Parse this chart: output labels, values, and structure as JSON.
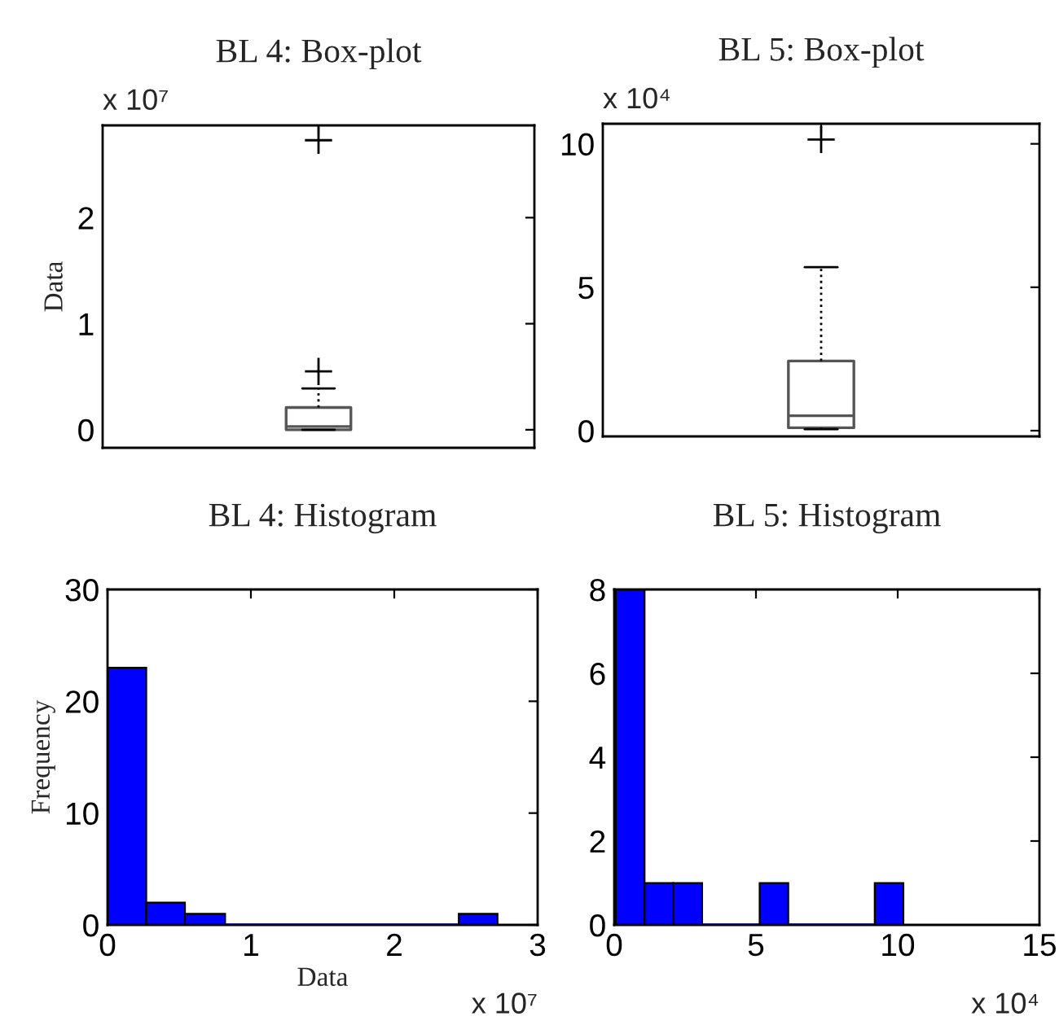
{
  "chart_data": [
    {
      "type": "box",
      "title": "BL 4: Box-plot",
      "ylabel": "Data",
      "categories": [
        null
      ],
      "color": "#555555",
      "boxes": [
        {
          "low": 0,
          "q1": 0.0,
          "median": 0.03,
          "q3": 0.21,
          "high": 0.39,
          "outliers": [
            0.55,
            2.73
          ]
        }
      ],
      "ylim": [
        -0.17,
        2.87
      ],
      "yticks": [
        0,
        1,
        2
      ],
      "annotations": [
        "x 10⁷"
      ]
    },
    {
      "type": "box",
      "title": "BL 5: Box-plot",
      "categories": [
        null
      ],
      "color": "#555555",
      "boxes": [
        {
          "low": 0.05,
          "q1": 0.1,
          "median": 0.52,
          "q3": 2.43,
          "high": 5.7,
          "outliers": [
            10.15
          ]
        }
      ],
      "ylim": [
        -0.2,
        10.7
      ],
      "yticks": [
        0,
        5,
        10
      ],
      "annotations": [
        "x 10⁴"
      ]
    },
    {
      "type": "histogram",
      "title": "BL 4: Histogram",
      "xlabel": "Data",
      "ylabel": "Frequency",
      "color": "#0000ff",
      "bins": [
        0,
        0.27,
        0.54,
        0.82,
        2.45,
        2.72
      ],
      "values": [
        23,
        2,
        1,
        0,
        1
      ],
      "xlim": [
        0,
        3
      ],
      "xticks": [
        0,
        1,
        2,
        3
      ],
      "ylim": [
        0,
        30
      ],
      "yticks": [
        0,
        10,
        20,
        30
      ],
      "annotations": [
        "x 10⁷"
      ]
    },
    {
      "type": "histogram",
      "title": "BL 5: Histogram",
      "color": "#0000ff",
      "bins": [
        0.05,
        1.07,
        2.08,
        3.1,
        5.13,
        6.14,
        9.19,
        10.2
      ],
      "values": [
        8,
        1,
        1,
        0,
        1,
        0,
        1
      ],
      "xlim": [
        0,
        15
      ],
      "xticks": [
        0,
        5,
        10,
        15
      ],
      "ylim": [
        0,
        8
      ],
      "yticks": [
        0,
        2,
        4,
        6,
        8
      ],
      "annotations": [
        "x 10⁴"
      ]
    }
  ]
}
